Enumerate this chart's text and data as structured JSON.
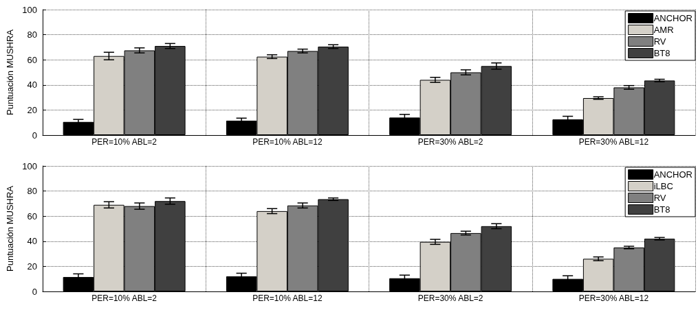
{
  "chart_data": [
    {
      "type": "bar",
      "ylabel": "Puntuación MUSHRA",
      "categories": [
        "PER=10% ABL=2",
        "PER=10% ABL=12",
        "PER=30% ABL=2",
        "PER=30% ABL=12"
      ],
      "ylim": [
        0,
        100
      ],
      "yticks": [
        0,
        20,
        40,
        60,
        80,
        100
      ],
      "grid": true,
      "legend": "top right",
      "series": [
        {
          "name": "ANCHOR",
          "color": "#000000",
          "values": [
            10.5,
            11.5,
            14,
            12.5
          ],
          "errors": [
            2,
            2,
            2.5,
            2.5
          ]
        },
        {
          "name": "AMR",
          "color": "#d4d0c8",
          "values": [
            63,
            62.5,
            44,
            29.5
          ],
          "errors": [
            3,
            1.5,
            2,
            1
          ]
        },
        {
          "name": "RV",
          "color": "#808080",
          "values": [
            67.5,
            67,
            50,
            38
          ],
          "errors": [
            2,
            1.5,
            2,
            1.5
          ]
        },
        {
          "name": "BT8",
          "color": "#404040",
          "values": [
            71,
            70.5,
            55,
            43.5
          ],
          "errors": [
            2,
            1.5,
            2.5,
            1
          ]
        }
      ]
    },
    {
      "type": "bar",
      "ylabel": "Puntuación MUSHRA",
      "categories": [
        "PER=10% ABL=2",
        "PER=10% ABL=12",
        "PER=30% ABL=2",
        "PER=30% ABL=12"
      ],
      "ylim": [
        0,
        100
      ],
      "yticks": [
        0,
        20,
        40,
        60,
        80,
        100
      ],
      "grid": true,
      "legend": "top right",
      "series": [
        {
          "name": "ANCHOR",
          "color": "#000000",
          "values": [
            11.5,
            12,
            10.5,
            10
          ],
          "errors": [
            2.5,
            2.5,
            2.5,
            2.5
          ]
        },
        {
          "name": "iLBC",
          "color": "#d4d0c8",
          "values": [
            69,
            64,
            39.5,
            26
          ],
          "errors": [
            2.5,
            2,
            2,
            1.5
          ]
        },
        {
          "name": "RV",
          "color": "#808080",
          "values": [
            68,
            68.5,
            46.5,
            35
          ],
          "errors": [
            2.5,
            2,
            1.5,
            1
          ]
        },
        {
          "name": "BT8",
          "color": "#404040",
          "values": [
            72,
            73.5,
            52,
            42
          ],
          "errors": [
            2.5,
            1,
            2,
            1
          ]
        }
      ]
    }
  ]
}
